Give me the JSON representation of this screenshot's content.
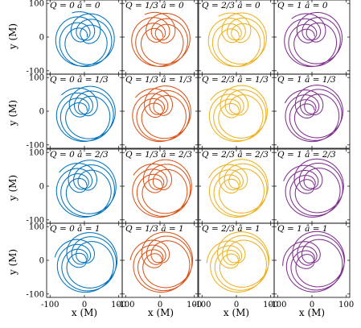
{
  "chart_data": {
    "type": "line",
    "layout": "grid 4x4",
    "xlabel": "x (M)",
    "ylabel": "y (M)",
    "xlim": [
      -110,
      110
    ],
    "ylim": [
      -110,
      110
    ],
    "x_ticks": [
      -100,
      0,
      100
    ],
    "y_ticks": [
      -100,
      0,
      100
    ],
    "x_tick_labels": [
      "-100",
      "0",
      "100"
    ],
    "y_tick_labels": [
      "-100",
      "0",
      "100"
    ],
    "q_values": [
      "0",
      "1/3",
      "2/3",
      "1"
    ],
    "a_values": [
      "0",
      "1/3",
      "2/3",
      "1"
    ],
    "series_colors": [
      "#0072BD",
      "#D95319",
      "#EDB120",
      "#7E2F8E"
    ],
    "grid": false,
    "panels": [
      {
        "row": 0,
        "col": 0,
        "label": "Q = 0 â = 0",
        "Q": 0,
        "a_hat": 0,
        "color": "#0072BD",
        "petals": 7,
        "r_max": 88,
        "r_min": 8
      },
      {
        "row": 0,
        "col": 1,
        "label": "Q = 1/3 â = 0",
        "Q": 0.3333,
        "a_hat": 0,
        "color": "#D95319",
        "petals": 7,
        "r_max": 88,
        "r_min": 8
      },
      {
        "row": 0,
        "col": 2,
        "label": "Q = 2/3 â = 0",
        "Q": 0.6667,
        "a_hat": 0,
        "color": "#EDB120",
        "petals": 7,
        "r_max": 88,
        "r_min": 8
      },
      {
        "row": 0,
        "col": 3,
        "label": "Q = 1 â = 0",
        "Q": 1,
        "a_hat": 0,
        "color": "#7E2F8E",
        "petals": 7,
        "r_max": 88,
        "r_min": 8
      },
      {
        "row": 1,
        "col": 0,
        "label": "Q = 0 â = 1/3",
        "Q": 0,
        "a_hat": 0.3333,
        "color": "#0072BD",
        "petals": 8,
        "r_max": 90,
        "r_min": 8
      },
      {
        "row": 1,
        "col": 1,
        "label": "Q = 1/3 â = 1/3",
        "Q": 0.3333,
        "a_hat": 0.3333,
        "color": "#D95319",
        "petals": 8,
        "r_max": 90,
        "r_min": 8
      },
      {
        "row": 1,
        "col": 2,
        "label": "Q = 2/3 â = 1/3",
        "Q": 0.6667,
        "a_hat": 0.3333,
        "color": "#EDB120",
        "petals": 8,
        "r_max": 90,
        "r_min": 8
      },
      {
        "row": 1,
        "col": 3,
        "label": "Q = 1 â = 1/3",
        "Q": 1,
        "a_hat": 0.3333,
        "color": "#7E2F8E",
        "petals": 8,
        "r_max": 90,
        "r_min": 8
      },
      {
        "row": 2,
        "col": 0,
        "label": "Q = 0 â = 2/3",
        "Q": 0,
        "a_hat": 0.6667,
        "color": "#0072BD",
        "petals": 8,
        "r_max": 92,
        "r_min": 7
      },
      {
        "row": 2,
        "col": 1,
        "label": "Q = 1/3 â = 2/3",
        "Q": 0.3333,
        "a_hat": 0.6667,
        "color": "#D95319",
        "petals": 8,
        "r_max": 92,
        "r_min": 7
      },
      {
        "row": 2,
        "col": 2,
        "label": "Q = 2/3 â = 2/3",
        "Q": 0.6667,
        "a_hat": 0.6667,
        "color": "#EDB120",
        "petals": 8,
        "r_max": 92,
        "r_min": 7
      },
      {
        "row": 2,
        "col": 3,
        "label": "Q = 1 â = 2/3",
        "Q": 1,
        "a_hat": 0.6667,
        "color": "#7E2F8E",
        "petals": 8,
        "r_max": 92,
        "r_min": 7
      },
      {
        "row": 3,
        "col": 0,
        "label": "Q = 0 â = 1",
        "Q": 0,
        "a_hat": 1,
        "color": "#0072BD",
        "petals": 9,
        "r_max": 95,
        "r_min": 6
      },
      {
        "row": 3,
        "col": 1,
        "label": "Q = 1/3 â = 1",
        "Q": 0.3333,
        "a_hat": 1,
        "color": "#D95319",
        "petals": 9,
        "r_max": 95,
        "r_min": 6
      },
      {
        "row": 3,
        "col": 2,
        "label": "Q = 2/3 â = 1",
        "Q": 0.6667,
        "a_hat": 1,
        "color": "#EDB120",
        "petals": 9,
        "r_max": 95,
        "r_min": 6
      },
      {
        "row": 3,
        "col": 3,
        "label": "Q = 1 â = 1",
        "Q": 1,
        "a_hat": 1,
        "color": "#7E2F8E",
        "petals": 9,
        "r_max": 95,
        "r_min": 6
      }
    ]
  }
}
